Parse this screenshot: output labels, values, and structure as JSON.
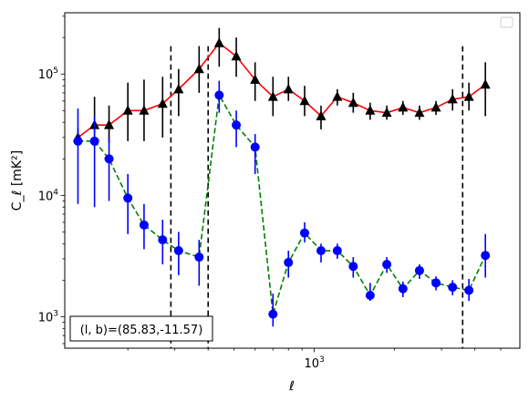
{
  "chart_data": {
    "type": "line",
    "xscale": "log",
    "yscale": "log",
    "xlabel": "ℓ",
    "ylabel": "C_ℓ  [mK²]",
    "xlim": [
      116,
      5900
    ],
    "ylim": [
      550,
      320000
    ],
    "x_ticks": [
      {
        "value": 1000,
        "base": "10",
        "exp": "3"
      }
    ],
    "y_ticks": [
      {
        "value": 1000,
        "base": "10",
        "exp": "3"
      },
      {
        "value": 10000,
        "base": "10",
        "exp": "4"
      },
      {
        "value": 100000,
        "base": "10",
        "exp": "5"
      }
    ],
    "vlines": [
      290,
      400,
      3600
    ],
    "annotation": "(l, b)=(85.83,-11.57)",
    "legend": {
      "placement": "top-right",
      "entries": []
    },
    "series": [
      {
        "marker": "triangle",
        "marker_color": "#000000",
        "line_color": "#ff0000",
        "line_style": "solid",
        "points": [
          {
            "x": 130,
            "y": 30000,
            "lo": 26000,
            "hi": 36000
          },
          {
            "x": 150,
            "y": 38000,
            "lo": 25000,
            "hi": 65000
          },
          {
            "x": 170,
            "y": 38000,
            "lo": 27000,
            "hi": 55000
          },
          {
            "x": 200,
            "y": 50000,
            "lo": 28000,
            "hi": 85000
          },
          {
            "x": 230,
            "y": 50000,
            "lo": 28000,
            "hi": 90000
          },
          {
            "x": 270,
            "y": 57000,
            "lo": 30000,
            "hi": 95000
          },
          {
            "x": 310,
            "y": 75000,
            "lo": 45000,
            "hi": 110000
          },
          {
            "x": 370,
            "y": 110000,
            "lo": 70000,
            "hi": 170000
          },
          {
            "x": 440,
            "y": 180000,
            "lo": 115000,
            "hi": 240000
          },
          {
            "x": 510,
            "y": 140000,
            "lo": 95000,
            "hi": 200000
          },
          {
            "x": 600,
            "y": 90000,
            "lo": 60000,
            "hi": 125000
          },
          {
            "x": 700,
            "y": 65000,
            "lo": 45000,
            "hi": 95000
          },
          {
            "x": 800,
            "y": 75000,
            "lo": 60000,
            "hi": 95000
          },
          {
            "x": 920,
            "y": 60000,
            "lo": 45000,
            "hi": 80000
          },
          {
            "x": 1060,
            "y": 45000,
            "lo": 35000,
            "hi": 55000
          },
          {
            "x": 1220,
            "y": 65000,
            "lo": 55000,
            "hi": 75000
          },
          {
            "x": 1400,
            "y": 58000,
            "lo": 48000,
            "hi": 70000
          },
          {
            "x": 1620,
            "y": 50000,
            "lo": 42000,
            "hi": 58000
          },
          {
            "x": 1870,
            "y": 48000,
            "lo": 42000,
            "hi": 55000
          },
          {
            "x": 2150,
            "y": 53000,
            "lo": 46000,
            "hi": 60000
          },
          {
            "x": 2480,
            "y": 48000,
            "lo": 42000,
            "hi": 55000
          },
          {
            "x": 2860,
            "y": 53000,
            "lo": 46000,
            "hi": 60000
          },
          {
            "x": 3300,
            "y": 62000,
            "lo": 50000,
            "hi": 75000
          },
          {
            "x": 3800,
            "y": 65000,
            "lo": 50000,
            "hi": 85000
          },
          {
            "x": 4380,
            "y": 82000,
            "lo": 45000,
            "hi": 125000
          }
        ]
      },
      {
        "marker": "circle",
        "marker_color": "#0000ff",
        "line_color": "#008000",
        "line_style": "dashed",
        "points": [
          {
            "x": 130,
            "y": 28000,
            "lo": 8500,
            "hi": 52000
          },
          {
            "x": 150,
            "y": 28000,
            "lo": 8000,
            "hi": 45000
          },
          {
            "x": 170,
            "y": 20000,
            "lo": 9000,
            "hi": 30000
          },
          {
            "x": 200,
            "y": 9500,
            "lo": 4800,
            "hi": 15000
          },
          {
            "x": 230,
            "y": 5700,
            "lo": 3600,
            "hi": 8500
          },
          {
            "x": 270,
            "y": 4300,
            "lo": 2700,
            "hi": 6300
          },
          {
            "x": 310,
            "y": 3500,
            "lo": 2200,
            "hi": 5000
          },
          {
            "x": 370,
            "y": 3100,
            "lo": 1800,
            "hi": 4300
          },
          {
            "x": 440,
            "y": 67000,
            "lo": 48000,
            "hi": 88000
          },
          {
            "x": 510,
            "y": 38000,
            "lo": 25000,
            "hi": 50000
          },
          {
            "x": 600,
            "y": 25000,
            "lo": 15000,
            "hi": 32000
          },
          {
            "x": 700,
            "y": 1050,
            "lo": 830,
            "hi": 1550
          },
          {
            "x": 800,
            "y": 2800,
            "lo": 2100,
            "hi": 3500
          },
          {
            "x": 920,
            "y": 4900,
            "lo": 4100,
            "hi": 6000
          },
          {
            "x": 1060,
            "y": 3500,
            "lo": 2800,
            "hi": 4000
          },
          {
            "x": 1220,
            "y": 3500,
            "lo": 3000,
            "hi": 4000
          },
          {
            "x": 1400,
            "y": 2600,
            "lo": 2100,
            "hi": 3100
          },
          {
            "x": 1620,
            "y": 1500,
            "lo": 1350,
            "hi": 1900
          },
          {
            "x": 1870,
            "y": 2700,
            "lo": 2300,
            "hi": 3100
          },
          {
            "x": 2150,
            "y": 1700,
            "lo": 1450,
            "hi": 1950
          },
          {
            "x": 2480,
            "y": 2400,
            "lo": 2050,
            "hi": 2700
          },
          {
            "x": 2860,
            "y": 1900,
            "lo": 1650,
            "hi": 2150
          },
          {
            "x": 3300,
            "y": 1750,
            "lo": 1500,
            "hi": 2000
          },
          {
            "x": 3800,
            "y": 1650,
            "lo": 1350,
            "hi": 2050
          },
          {
            "x": 4380,
            "y": 3200,
            "lo": 2100,
            "hi": 4800
          }
        ]
      }
    ]
  }
}
